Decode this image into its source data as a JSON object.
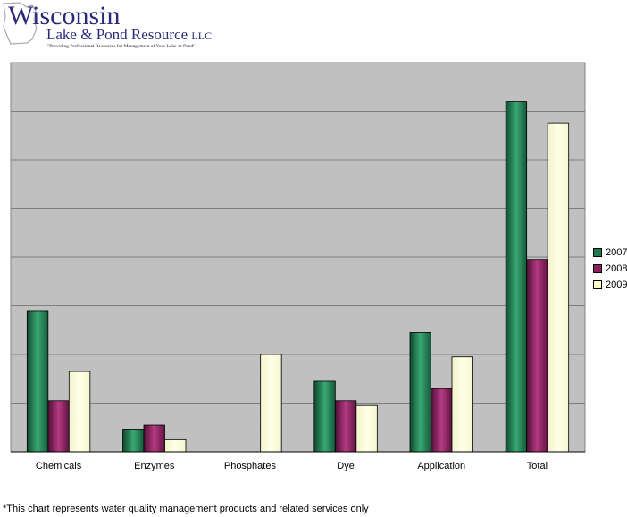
{
  "logo": {
    "line1": "Wisconsin",
    "line2": "Lake & Pond Resource",
    "suffix": "LLC",
    "tagline": "\"Providing Professional Resources for Management of Your Lake or Pond\"",
    "color": "#2a2a7a"
  },
  "footnote": "*This chart represents water quality management products and related services only",
  "chart_data": {
    "type": "bar",
    "title": "",
    "xlabel": "",
    "ylabel": "",
    "grid": true,
    "legend": "right",
    "ylim": [
      0,
      8
    ],
    "categories": [
      "Chemicals",
      "Enzymes",
      "Phosphates",
      "Dye",
      "Application",
      "Total"
    ],
    "series": [
      {
        "name": "2007",
        "color": "#1f7a4f",
        "values": [
          2.9,
          0.45,
          0,
          1.45,
          2.45,
          7.2
        ]
      },
      {
        "name": "2008",
        "color": "#8a2060",
        "values": [
          1.05,
          0.55,
          0,
          1.05,
          1.3,
          3.95
        ]
      },
      {
        "name": "2009",
        "color": "#ffffcc",
        "values": [
          1.65,
          0.25,
          2.0,
          0.95,
          1.95,
          6.75
        ]
      }
    ]
  }
}
